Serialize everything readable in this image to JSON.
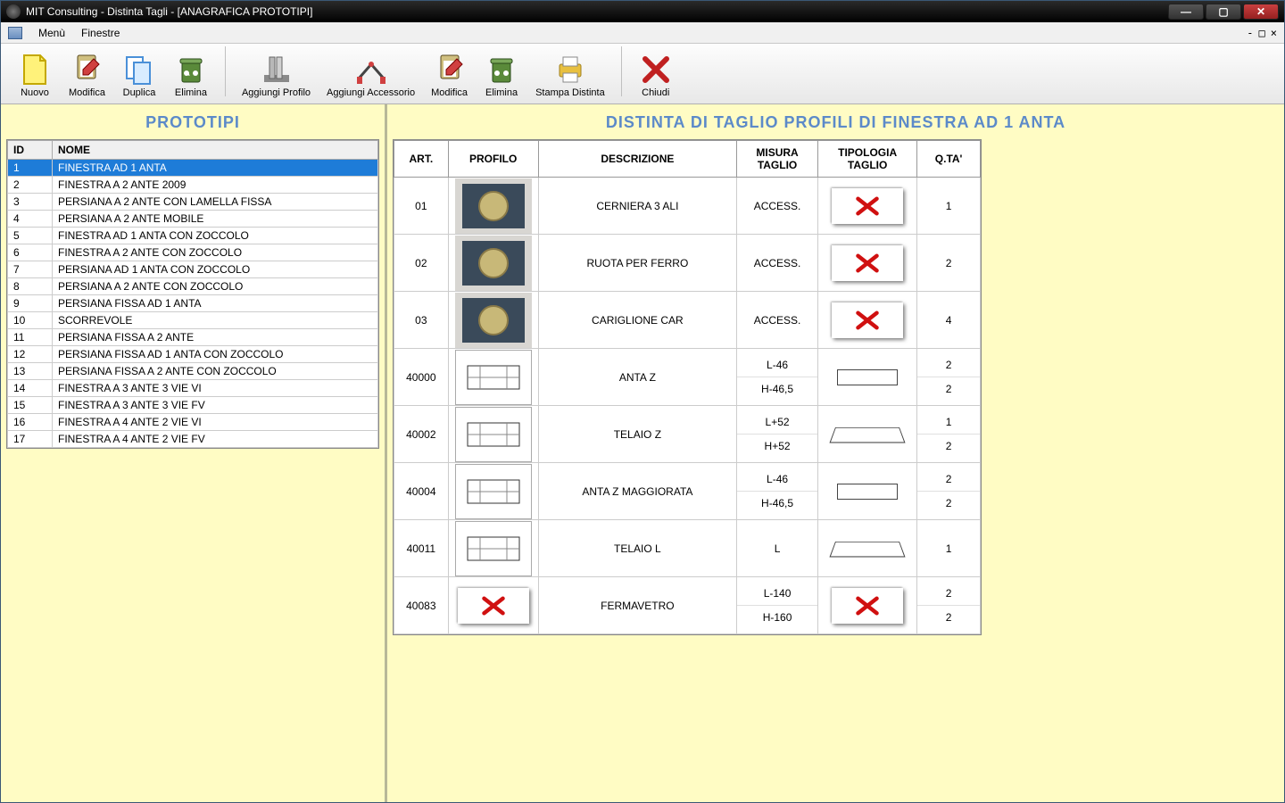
{
  "window": {
    "title": "MIT Consulting - Distinta Tagli - [ANAGRAFICA PROTOTIPI]"
  },
  "menubar": {
    "menu": "Menù",
    "finestre": "Finestre"
  },
  "toolbar": {
    "nuovo": "Nuovo",
    "modifica": "Modifica",
    "duplica": "Duplica",
    "elimina": "Elimina",
    "aggiungi_profilo": "Aggiungi Profilo",
    "aggiungi_accessorio": "Aggiungi Accessorio",
    "modifica2": "Modifica",
    "elimina2": "Elimina",
    "stampa_distinta": "Stampa Distinta",
    "chiudi": "Chiudi"
  },
  "left": {
    "heading": "PROTOTIPI",
    "col_id": "ID",
    "col_nome": "NOME",
    "rows": [
      {
        "id": "1",
        "nome": "FINESTRA AD 1 ANTA",
        "sel": true
      },
      {
        "id": "2",
        "nome": "FINESTRA A 2 ANTE 2009"
      },
      {
        "id": "3",
        "nome": "PERSIANA A 2 ANTE CON LAMELLA FISSA"
      },
      {
        "id": "4",
        "nome": "PERSIANA A 2 ANTE MOBILE"
      },
      {
        "id": "5",
        "nome": "FINESTRA AD 1 ANTA CON ZOCCOLO"
      },
      {
        "id": "6",
        "nome": "FINESTRA A 2 ANTE CON ZOCCOLO"
      },
      {
        "id": "7",
        "nome": "PERSIANA AD 1 ANTA CON ZOCCOLO"
      },
      {
        "id": "8",
        "nome": "PERSIANA A 2 ANTE CON ZOCCOLO"
      },
      {
        "id": "9",
        "nome": "PERSIANA FISSA AD 1 ANTA"
      },
      {
        "id": "10",
        "nome": "SCORREVOLE"
      },
      {
        "id": "11",
        "nome": "PERSIANA FISSA A 2 ANTE"
      },
      {
        "id": "12",
        "nome": "PERSIANA FISSA AD 1 ANTA CON ZOCCOLO"
      },
      {
        "id": "13",
        "nome": "PERSIANA FISSA A 2 ANTE CON ZOCCOLO"
      },
      {
        "id": "14",
        "nome": "FINESTRA A 3 ANTE 3 VIE VI"
      },
      {
        "id": "15",
        "nome": "FINESTRA A 3 ANTE 3 VIE FV"
      },
      {
        "id": "16",
        "nome": "FINESTRA A 4 ANTE 2 VIE VI"
      },
      {
        "id": "17",
        "nome": "FINESTRA A 4 ANTE 2 VIE FV"
      }
    ]
  },
  "right": {
    "heading": "DISTINTA DI TAGLIO PROFILI DI FINESTRA AD 1 ANTA",
    "col_art": "ART.",
    "col_profilo": "PROFILO",
    "col_descrizione": "DESCRIZIONE",
    "col_misura": "MISURA TAGLIO",
    "col_tipologia": "TIPOLOGIA TAGLIO",
    "col_qta": "Q.TA'",
    "rows": [
      {
        "art": "01",
        "desc": "CERNIERA 3 ALI",
        "misura": [
          "ACCESS."
        ],
        "tipo": "x",
        "qta": [
          "1"
        ],
        "img": "photo"
      },
      {
        "art": "02",
        "desc": "RUOTA PER FERRO",
        "misura": [
          "ACCESS."
        ],
        "tipo": "x",
        "qta": [
          "2"
        ],
        "img": "photo"
      },
      {
        "art": "03",
        "desc": "CARIGLIONE CAR",
        "misura": [
          "ACCESS."
        ],
        "tipo": "x",
        "qta": [
          "4"
        ],
        "img": "photo"
      },
      {
        "art": "40000",
        "desc": "ANTA Z",
        "misura": [
          "L-46",
          "H-46,5"
        ],
        "tipo": "rect",
        "qta": [
          "2",
          "2"
        ],
        "img": "schematic"
      },
      {
        "art": "40002",
        "desc": "TELAIO Z",
        "misura": [
          "L+52",
          "H+52"
        ],
        "tipo": "trap",
        "qta": [
          "1",
          "2"
        ],
        "img": "schematic"
      },
      {
        "art": "40004",
        "desc": "ANTA Z MAGGIORATA",
        "misura": [
          "L-46",
          "H-46,5"
        ],
        "tipo": "rect",
        "qta": [
          "2",
          "2"
        ],
        "img": "schematic"
      },
      {
        "art": "40011",
        "desc": "TELAIO L",
        "misura": [
          "L"
        ],
        "tipo": "trap",
        "qta": [
          "1"
        ],
        "img": "schematic"
      },
      {
        "art": "40083",
        "desc": "FERMAVETRO",
        "misura": [
          "L-140",
          "H-160"
        ],
        "tipo": "x",
        "qta": [
          "2",
          "2"
        ],
        "img": "x"
      }
    ]
  },
  "colors": {
    "bg_app": "#fffcc4",
    "highlight": "#1e7cd8",
    "heading": "#5c8ac9"
  }
}
